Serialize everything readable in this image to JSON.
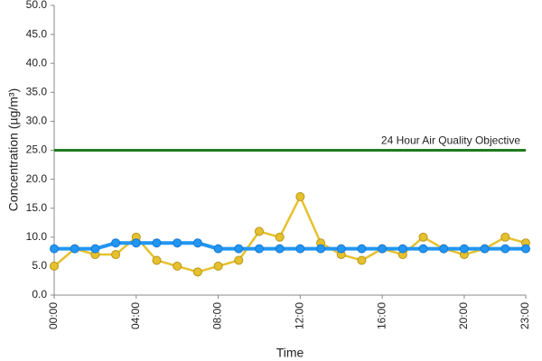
{
  "chart_data": {
    "type": "line",
    "ylabel": "Concentration (µg/m³)",
    "xlabel": "Time",
    "categories": [
      "00:00",
      null,
      null,
      null,
      "04:00",
      null,
      null,
      null,
      "08:00",
      null,
      null,
      null,
      "12:00",
      null,
      null,
      null,
      "16:00",
      null,
      null,
      null,
      "20:00",
      null,
      null,
      "23:00"
    ],
    "series": [
      {
        "color": "#e6c12e",
        "values": [
          5,
          8,
          7,
          7,
          10,
          6,
          5,
          4,
          5,
          6,
          11,
          10,
          17,
          9,
          7,
          6,
          8,
          7,
          10,
          8,
          7,
          8,
          10,
          9
        ]
      },
      {
        "color": "#2196f3",
        "values": [
          8,
          8,
          8,
          9,
          9,
          9,
          9,
          9,
          8,
          8,
          8,
          8,
          8,
          8,
          8,
          8,
          8,
          8,
          8,
          8,
          8,
          8,
          8,
          8
        ]
      }
    ],
    "objective": {
      "value": 25,
      "label": "24 Hour Air Quality Objective",
      "color": "#1f7a1f"
    },
    "ylim": [
      0,
      50
    ],
    "yticks": [
      {
        "value": 0,
        "label": "0.0"
      },
      {
        "value": 5,
        "label": "5.0"
      },
      {
        "value": 10,
        "label": "10.0"
      },
      {
        "value": 15,
        "label": "15.0"
      },
      {
        "value": 20,
        "label": "20.0"
      },
      {
        "value": 25,
        "label": "25.0"
      },
      {
        "value": 30,
        "label": "30.0"
      },
      {
        "value": 35,
        "label": "35.0"
      },
      {
        "value": 40,
        "label": "40.0"
      },
      {
        "value": 45,
        "label": "45.0"
      },
      {
        "value": 50,
        "label": "50.0"
      }
    ],
    "grid": false
  }
}
